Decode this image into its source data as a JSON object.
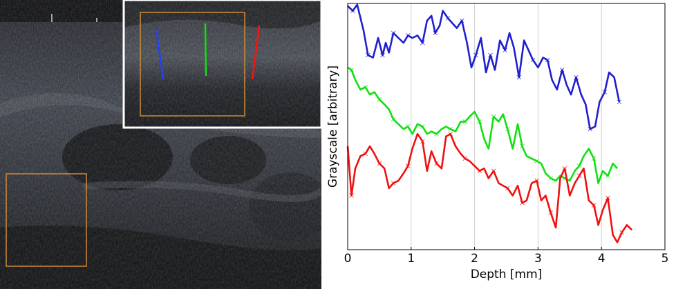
{
  "ultrasound": {
    "colors": {
      "roi_box": "#d08a3a",
      "inset_border": "#ffffff",
      "profile_line_blue": "#2040ff",
      "profile_line_green": "#10e010",
      "profile_line_red": "#ff1010"
    }
  },
  "chart_data": {
    "type": "line",
    "title": "",
    "xlabel": "Depth [mm]",
    "ylabel": "Grayscale [arbitrary]",
    "xlim": [
      0,
      5
    ],
    "xticks": [
      "0",
      "1",
      "2",
      "3",
      "4",
      "5"
    ],
    "ylim": [
      0,
      100
    ],
    "grid": "vertical",
    "marker": "x",
    "series": [
      {
        "color": "#1f1fd0",
        "x": [
          0,
          0.08,
          0.15,
          0.25,
          0.32,
          0.4,
          0.48,
          0.55,
          0.6,
          0.65,
          0.72,
          0.8,
          0.88,
          0.95,
          1.02,
          1.1,
          1.18,
          1.25,
          1.32,
          1.38,
          1.45,
          1.5,
          1.58,
          1.65,
          1.72,
          1.8,
          1.88,
          1.95,
          2.02,
          2.1,
          2.18,
          2.25,
          2.32,
          2.4,
          2.48,
          2.55,
          2.62,
          2.7,
          2.78,
          2.85,
          2.92,
          3.0,
          3.08,
          3.15,
          3.22,
          3.3,
          3.38,
          3.45,
          3.52,
          3.6,
          3.68,
          3.75,
          3.82,
          3.9,
          3.97,
          4.05,
          4.12,
          4.2,
          4.28
        ],
        "y": [
          99,
          97,
          99.5,
          89,
          79,
          78,
          86,
          79,
          84,
          80,
          88,
          86,
          84,
          87,
          86,
          87,
          84,
          93,
          95,
          88,
          91,
          97,
          94,
          92,
          90,
          93,
          84,
          74,
          79,
          86,
          72,
          79,
          73,
          85,
          81,
          88,
          82,
          70,
          85,
          81,
          77,
          74,
          78,
          77,
          69,
          65,
          73,
          67,
          63,
          70,
          63,
          59,
          49,
          50,
          60,
          64,
          72,
          70,
          60
        ]
      },
      {
        "color": "#10e010",
        "x": [
          0,
          0.06,
          0.12,
          0.2,
          0.28,
          0.35,
          0.42,
          0.5,
          0.58,
          0.65,
          0.72,
          0.8,
          0.88,
          0.95,
          1.02,
          1.1,
          1.18,
          1.25,
          1.32,
          1.4,
          1.48,
          1.55,
          1.62,
          1.7,
          1.78,
          1.85,
          1.92,
          2.0,
          2.08,
          2.15,
          2.22,
          2.3,
          2.38,
          2.45,
          2.52,
          2.6,
          2.68,
          2.75,
          2.82,
          2.9,
          2.98,
          3.05,
          3.12,
          3.2,
          3.28,
          3.35,
          3.42,
          3.5,
          3.58,
          3.65,
          3.72,
          3.8,
          3.88,
          3.95,
          4.02,
          4.1,
          4.18,
          4.25
        ],
        "y": [
          74,
          73,
          69,
          65,
          66,
          63,
          64,
          61,
          59,
          57,
          53,
          51,
          49,
          50,
          47,
          51,
          50,
          47,
          48,
          47,
          49,
          50,
          49,
          48,
          52,
          52,
          54,
          56,
          52,
          45,
          41,
          54,
          52,
          55,
          49,
          41,
          51,
          42,
          38,
          37,
          36,
          35,
          31,
          29,
          28,
          30,
          29,
          28,
          32,
          34,
          38,
          41,
          37,
          27,
          32,
          30,
          35,
          33
        ]
      },
      {
        "color": "#f01010",
        "x": [
          0,
          0.06,
          0.12,
          0.2,
          0.28,
          0.35,
          0.42,
          0.5,
          0.58,
          0.65,
          0.72,
          0.8,
          0.88,
          0.95,
          1.02,
          1.1,
          1.18,
          1.25,
          1.32,
          1.4,
          1.48,
          1.55,
          1.62,
          1.7,
          1.78,
          1.85,
          1.92,
          2.0,
          2.08,
          2.15,
          2.22,
          2.3,
          2.38,
          2.45,
          2.52,
          2.6,
          2.68,
          2.75,
          2.82,
          2.9,
          2.98,
          3.05,
          3.12,
          3.2,
          3.28,
          3.35,
          3.42,
          3.5,
          3.58,
          3.65,
          3.72,
          3.8,
          3.88,
          3.95,
          4.02,
          4.1,
          4.18,
          4.25,
          4.32,
          4.4,
          4.48
        ],
        "y": [
          42,
          22,
          33,
          38,
          39,
          42,
          39,
          35,
          33,
          25,
          27,
          28,
          31,
          34,
          41,
          47,
          44,
          32,
          40,
          35,
          33,
          46,
          47,
          42,
          39,
          37,
          36,
          34,
          32,
          33,
          29,
          32,
          27,
          26,
          25,
          22,
          26,
          19,
          20,
          27,
          28,
          20,
          22,
          15,
          9,
          29,
          33,
          22,
          27,
          30,
          33,
          20,
          18,
          10,
          16,
          21,
          6,
          3,
          7,
          10,
          8
        ]
      }
    ]
  }
}
